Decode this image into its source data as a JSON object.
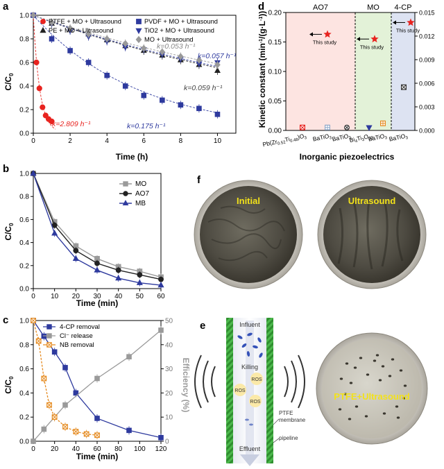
{
  "chart_data": [
    {
      "panel": "a",
      "type": "scatter",
      "xlabel": "Time (h)",
      "ylabel": "C/C0",
      "xlim": [
        0,
        11
      ],
      "ylim": [
        0,
        1.0
      ],
      "xticks": [
        "0",
        "2",
        "4",
        "6",
        "8",
        "10"
      ],
      "yticks": [
        "0.0",
        "0.2",
        "0.4",
        "0.6",
        "0.8",
        "1.0"
      ],
      "legend_position": "top",
      "series": [
        {
          "name": "PTFE + MO + Ultrasound",
          "color": "#e8231f",
          "marker": "circle",
          "x": [
            0,
            0.17,
            0.33,
            0.5,
            0.67,
            0.83,
            1.0
          ],
          "y": [
            1.0,
            0.6,
            0.38,
            0.22,
            0.15,
            0.12,
            0.1
          ],
          "fit_label": "k=2.809 h⁻¹",
          "fit_k": 2.809
        },
        {
          "name": "PE + MO + Ultrasound",
          "color": "#222222",
          "marker": "triangle-up",
          "x": [
            0,
            1,
            2,
            3,
            4,
            5,
            6,
            7,
            8,
            9,
            10
          ],
          "y": [
            1.0,
            0.93,
            0.88,
            0.84,
            0.79,
            0.74,
            0.7,
            0.66,
            0.62,
            0.58,
            0.53
          ],
          "fit_label": "k=0.059 h⁻¹",
          "fit_k": 0.059
        },
        {
          "name": "PVDF + MO + Ultrasound",
          "color": "#2e3a9e",
          "marker": "square",
          "x": [
            0,
            1,
            2,
            3,
            4,
            5,
            6,
            7,
            8,
            9,
            10
          ],
          "y": [
            1.0,
            0.8,
            0.7,
            0.6,
            0.49,
            0.4,
            0.32,
            0.28,
            0.24,
            0.21,
            0.16
          ],
          "fit_label": "k=0.175 h⁻¹",
          "fit_k": 0.175
        },
        {
          "name": "TiO2 + MO + Ultrasound",
          "color": "#2e3a9e",
          "marker": "triangle-down",
          "x": [
            0,
            1,
            2,
            3,
            4,
            5,
            6,
            7,
            8,
            9,
            10
          ],
          "y": [
            1.0,
            0.93,
            0.87,
            0.82,
            0.78,
            0.73,
            0.71,
            0.67,
            0.63,
            0.59,
            0.6
          ],
          "fit_label": "k=0.057 h⁻¹",
          "fit_k": 0.057
        },
        {
          "name": "MO + Ultrasound",
          "color": "#999999",
          "marker": "diamond",
          "x": [
            0,
            1,
            2,
            3,
            4,
            5,
            6,
            7,
            8,
            9,
            10
          ],
          "y": [
            1.0,
            0.94,
            0.89,
            0.84,
            0.8,
            0.76,
            0.72,
            0.69,
            0.65,
            0.62,
            0.58
          ],
          "fit_label": "k=0.053 h⁻¹",
          "fit_k": 0.053
        }
      ]
    },
    {
      "panel": "b",
      "type": "line",
      "xlabel": "Time (min)",
      "ylabel": "C/C0",
      "xlim": [
        0,
        60
      ],
      "ylim": [
        0,
        1.0
      ],
      "xticks": [
        "0",
        "10",
        "20",
        "30",
        "40",
        "50",
        "60"
      ],
      "yticks": [
        "0.0",
        "0.2",
        "0.4",
        "0.6",
        "0.8",
        "1.0"
      ],
      "legend_position": "top-right",
      "series": [
        {
          "name": "MO",
          "color": "#9a9a9a",
          "marker": "square",
          "x": [
            0,
            10,
            20,
            30,
            40,
            50,
            60
          ],
          "y": [
            1.0,
            0.58,
            0.37,
            0.26,
            0.19,
            0.15,
            0.1
          ]
        },
        {
          "name": "AO7",
          "color": "#222222",
          "marker": "circle",
          "x": [
            0,
            10,
            20,
            30,
            40,
            50,
            60
          ],
          "y": [
            1.0,
            0.55,
            0.33,
            0.22,
            0.16,
            0.12,
            0.08
          ]
        },
        {
          "name": "MB",
          "color": "#2e3a9e",
          "marker": "triangle-up",
          "x": [
            0,
            10,
            20,
            30,
            40,
            50,
            60
          ],
          "y": [
            1.0,
            0.48,
            0.26,
            0.16,
            0.09,
            0.05,
            0.03
          ]
        }
      ]
    },
    {
      "panel": "c",
      "type": "line",
      "xlabel": "Time (min)",
      "ylabel": "C/C0",
      "y2label": "Efficiency (%)",
      "xlim": [
        0,
        120
      ],
      "ylim": [
        0,
        1.0
      ],
      "y2lim": [
        0,
        50
      ],
      "xticks": [
        "0",
        "20",
        "40",
        "60",
        "80",
        "100",
        "120"
      ],
      "yticks": [
        "0.0",
        "0.2",
        "0.4",
        "0.6",
        "0.8",
        "1.0"
      ],
      "y2ticks": [
        "0",
        "10",
        "20",
        "30",
        "40",
        "50"
      ],
      "legend_position": "top-left",
      "series": [
        {
          "name": "4-CP removal",
          "axis": "left",
          "color": "#2e3a9e",
          "marker": "square",
          "x": [
            0,
            10,
            20,
            30,
            40,
            60,
            90,
            120
          ],
          "y": [
            1.0,
            0.87,
            0.74,
            0.61,
            0.4,
            0.19,
            0.09,
            0.03
          ]
        },
        {
          "name": "Cl⁻ release",
          "axis": "right",
          "color": "#9a9a9a",
          "marker": "square",
          "x": [
            0,
            10,
            20,
            30,
            60,
            90,
            120
          ],
          "y": [
            0,
            5,
            10,
            15,
            26,
            35,
            46
          ]
        },
        {
          "name": "NB removal",
          "axis": "left",
          "color": "#e58a1f",
          "marker": "square-x",
          "x": [
            0,
            5,
            10,
            15,
            20,
            30,
            40,
            50,
            60
          ],
          "y": [
            1.0,
            0.83,
            0.52,
            0.3,
            0.2,
            0.12,
            0.08,
            0.06,
            0.05
          ]
        }
      ]
    },
    {
      "panel": "d",
      "type": "scatter",
      "xlabel": "Inorganic piezoelectrics",
      "ylabel": "Kinetic constant (min⁻¹/(g·L⁻¹))",
      "ylim": [
        0,
        0.2
      ],
      "y2lim": [
        0,
        0.015
      ],
      "yticks": [
        "0.00",
        "0.05",
        "0.10",
        "0.15",
        "0.20"
      ],
      "y2ticks": [
        "0.000",
        "0.003",
        "0.006",
        "0.009",
        "0.012",
        "0.015"
      ],
      "groups": [
        {
          "name": "AO7",
          "color": "#fde4e1"
        },
        {
          "name": "MO",
          "color": "#e3f2d8"
        },
        {
          "name": "4-CP",
          "color": "#dde3f2"
        }
      ],
      "categories": [
        "Pb(Zr0.52Ti0.48)O3",
        "BaTiO3",
        "BaTiO3",
        "Bi4Ti3O12",
        "BaTiO3",
        "BaTiO3"
      ],
      "category_labels": [
        {
          "main": "Pb(Zr",
          "sub": "0.52",
          "main2": "Ti",
          "sub2": "0.48",
          "main3": ")O",
          "sub3": "3"
        },
        {
          "main": "BaTiO",
          "sub": "3"
        },
        {
          "main": "BaTiO",
          "sub": "3"
        },
        {
          "main": "Bi",
          "sub": "4",
          "main2": "Ti",
          "sub2": "3",
          "main3": "O",
          "sub3": "12"
        },
        {
          "main": "BaTiO",
          "sub": "3"
        },
        {
          "main": "BaTiO",
          "sub": "3"
        }
      ],
      "points": [
        {
          "group": "AO7",
          "category_index": 0,
          "value": 0.005,
          "axis": "left",
          "color": "#e8231f",
          "marker": "square-x"
        },
        {
          "group": "AO7",
          "category_index": 1,
          "value": 0.005,
          "axis": "left",
          "color": "#8fa7c8",
          "marker": "square-grid"
        },
        {
          "group": "AO7",
          "category_index": 2,
          "value": 0.005,
          "axis": "left",
          "color": "#333333",
          "marker": "circle-x"
        },
        {
          "group": "MO",
          "category_index": 3,
          "value": 0.005,
          "axis": "left",
          "color": "#2e3a9e",
          "marker": "triangle-down"
        },
        {
          "group": "MO",
          "category_index": 4,
          "value": 0.012,
          "axis": "left",
          "color": "#e58a1f",
          "marker": "square-grid"
        },
        {
          "group": "4-CP",
          "category_index": 5,
          "value": 0.0055,
          "axis": "right",
          "color": "#333333",
          "marker": "square-x"
        }
      ],
      "this_study": [
        {
          "group": "AO7",
          "value": 0.163,
          "label": "This study"
        },
        {
          "group": "MO",
          "value": 0.155,
          "label": "This study"
        },
        {
          "group": "4-CP",
          "value": 0.183,
          "label": "This study"
        }
      ]
    }
  ],
  "panels": {
    "a": {
      "letter": "a"
    },
    "b": {
      "letter": "b"
    },
    "c": {
      "letter": "c"
    },
    "d": {
      "letter": "d",
      "groups": [
        "AO7",
        "MO",
        "4-CP"
      ],
      "this_study": "This study"
    },
    "e": {
      "letter": "e",
      "labels": {
        "influent": "Influent",
        "killing": "Killing",
        "ros": "ROS",
        "ptfe": "PTFE",
        "membrane": "membrane",
        "pipeline": "pipeline",
        "effluent": "Effluent"
      },
      "dish_label": "PTFE+Ultrasound"
    },
    "f": {
      "letter": "f",
      "dish_left": "Initial",
      "dish_right": "Ultrasound"
    }
  },
  "colors": {
    "red": "#e8231f",
    "navy": "#2e3a9e",
    "gray": "#9a9a9a",
    "orange": "#e58a1f",
    "dark": "#222222",
    "label_yellow": "#f3e21a"
  }
}
